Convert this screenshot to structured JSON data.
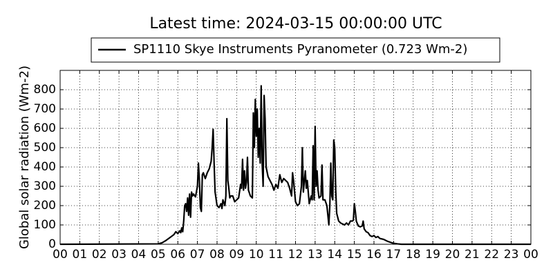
{
  "chart_data": {
    "type": "line",
    "title": "Latest time: 2024-03-15 00:00:00 UTC",
    "y_label": "Global solar radiation (Wm-2)",
    "legend_position": "upper center",
    "grid": true,
    "xlim": [
      0,
      24
    ],
    "ylim": [
      0,
      900
    ],
    "xticks": [
      {
        "value": 0,
        "label": "00"
      },
      {
        "value": 1,
        "label": "01"
      },
      {
        "value": 2,
        "label": "02"
      },
      {
        "value": 3,
        "label": "03"
      },
      {
        "value": 4,
        "label": "04"
      },
      {
        "value": 5,
        "label": "05"
      },
      {
        "value": 6,
        "label": "06"
      },
      {
        "value": 7,
        "label": "07"
      },
      {
        "value": 8,
        "label": "08"
      },
      {
        "value": 9,
        "label": "09"
      },
      {
        "value": 10,
        "label": "10"
      },
      {
        "value": 11,
        "label": "11"
      },
      {
        "value": 12,
        "label": "12"
      },
      {
        "value": 13,
        "label": "13"
      },
      {
        "value": 14,
        "label": "14"
      },
      {
        "value": 15,
        "label": "15"
      },
      {
        "value": 16,
        "label": "16"
      },
      {
        "value": 17,
        "label": "17"
      },
      {
        "value": 18,
        "label": "18"
      },
      {
        "value": 19,
        "label": "19"
      },
      {
        "value": 20,
        "label": "20"
      },
      {
        "value": 21,
        "label": "21"
      },
      {
        "value": 22,
        "label": "22"
      },
      {
        "value": 23,
        "label": "23"
      },
      {
        "value": 24,
        "label": "00"
      }
    ],
    "yticks": [
      0,
      100,
      200,
      300,
      400,
      500,
      600,
      700,
      800
    ],
    "x": [
      0,
      5.0,
      5.2,
      5.4,
      5.6,
      5.8,
      5.9,
      6.0,
      6.1,
      6.15,
      6.2,
      6.25,
      6.3,
      6.35,
      6.4,
      6.45,
      6.5,
      6.55,
      6.6,
      6.65,
      6.7,
      6.75,
      6.8,
      6.9,
      7.0,
      7.05,
      7.1,
      7.15,
      7.2,
      7.25,
      7.3,
      7.4,
      7.5,
      7.6,
      7.7,
      7.75,
      7.8,
      7.85,
      7.9,
      8.0,
      8.1,
      8.2,
      8.25,
      8.3,
      8.4,
      8.45,
      8.5,
      8.55,
      8.6,
      8.65,
      8.7,
      8.8,
      8.9,
      9.0,
      9.1,
      9.2,
      9.25,
      9.3,
      9.35,
      9.4,
      9.45,
      9.5,
      9.55,
      9.6,
      9.7,
      9.8,
      9.85,
      9.9,
      9.95,
      10.0,
      10.05,
      10.1,
      10.15,
      10.2,
      10.25,
      10.3,
      10.35,
      10.4,
      10.45,
      10.5,
      10.6,
      10.7,
      10.8,
      10.9,
      11.0,
      11.1,
      11.2,
      11.3,
      11.4,
      11.5,
      11.6,
      11.7,
      11.8,
      11.85,
      11.9,
      12.0,
      12.1,
      12.2,
      12.3,
      12.35,
      12.4,
      12.5,
      12.55,
      12.6,
      12.7,
      12.8,
      12.85,
      12.9,
      12.95,
      13.0,
      13.05,
      13.1,
      13.15,
      13.2,
      13.3,
      13.35,
      13.4,
      13.5,
      13.6,
      13.7,
      13.75,
      13.8,
      13.85,
      13.9,
      13.95,
      14.0,
      14.05,
      14.1,
      14.2,
      14.3,
      14.4,
      14.5,
      14.6,
      14.7,
      14.8,
      14.9,
      14.95,
      15.0,
      15.05,
      15.1,
      15.2,
      15.3,
      15.4,
      15.45,
      15.5,
      15.6,
      15.7,
      15.8,
      15.9,
      16.0,
      16.1,
      16.2,
      16.3,
      16.5,
      16.7,
      16.9,
      17.0,
      17.2,
      17.4,
      24
    ],
    "series": [
      {
        "name": "SP1110 Skye Instruments Pyranometer (0.723 Wm-2)",
        "color": "#000000",
        "values": [
          0,
          2,
          8,
          20,
          35,
          50,
          65,
          55,
          70,
          60,
          85,
          65,
          120,
          200,
          210,
          170,
          240,
          150,
          260,
          140,
          270,
          250,
          260,
          245,
          300,
          420,
          330,
          190,
          170,
          360,
          370,
          340,
          370,
          390,
          430,
          500,
          595,
          420,
          270,
          200,
          190,
          210,
          185,
          230,
          200,
          250,
          650,
          330,
          290,
          240,
          250,
          250,
          220,
          230,
          240,
          310,
          290,
          440,
          280,
          380,
          290,
          320,
          450,
          280,
          250,
          240,
          680,
          500,
          750,
          560,
          700,
          450,
          600,
          420,
          820,
          420,
          300,
          770,
          650,
          400,
          350,
          330,
          310,
          280,
          310,
          290,
          360,
          320,
          340,
          330,
          320,
          290,
          250,
          370,
          330,
          220,
          200,
          210,
          300,
          500,
          270,
          380,
          290,
          330,
          210,
          250,
          230,
          510,
          230,
          610,
          300,
          380,
          280,
          240,
          250,
          410,
          230,
          230,
          200,
          100,
          200,
          420,
          250,
          230,
          540,
          500,
          280,
          160,
          120,
          110,
          105,
          100,
          110,
          100,
          120,
          120,
          125,
          210,
          170,
          120,
          95,
          90,
          95,
          120,
          80,
          65,
          60,
          45,
          40,
          45,
          35,
          40,
          30,
          25,
          15,
          8,
          5,
          2,
          0,
          0
        ]
      }
    ]
  }
}
